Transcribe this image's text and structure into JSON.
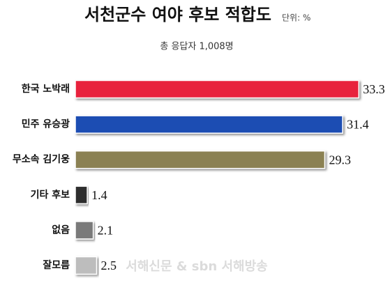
{
  "chart_data": {
    "type": "hbar",
    "title": "서천군수 여야 후보 적합도",
    "unit": "단위: %",
    "subtitle": "총 응답자 1,008명",
    "categories": [
      "한국 노박래",
      "민주 유승광",
      "무소속 김기웅",
      "기타 후보",
      "없음",
      "잘모름"
    ],
    "values": [
      33.3,
      31.4,
      29.3,
      1.4,
      2.1,
      2.5
    ],
    "colors": [
      "#e8203c",
      "#1f4db3",
      "#8b8152",
      "#2e2e2e",
      "#7a7a7a",
      "#bdbdbd"
    ],
    "watermark": "서해신문 & sbn 서해방송"
  }
}
